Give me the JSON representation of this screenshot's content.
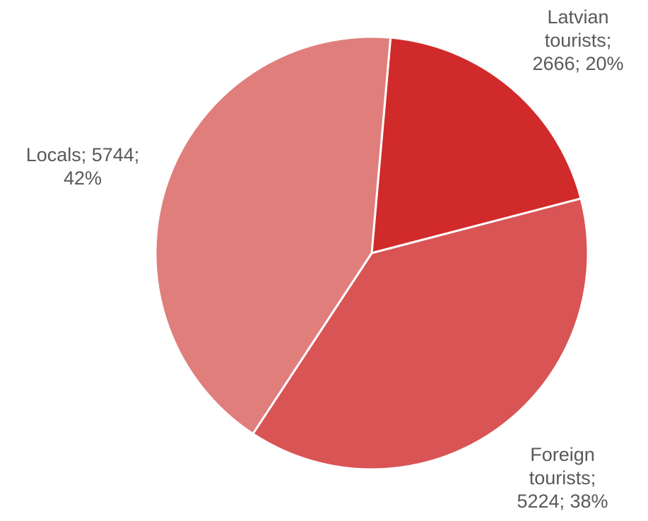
{
  "chart_data": {
    "type": "pie",
    "title": "",
    "start_angle_deg": 5,
    "direction": "clockwise",
    "slices": [
      {
        "category": "Latvian tourists",
        "value": 2666,
        "percent": "20%",
        "color": "#d12a2a",
        "label_lines": [
          "Latvian",
          "tourists;",
          "2666; 20%"
        ]
      },
      {
        "category": "Foreign tourists",
        "value": 5224,
        "percent": "38%",
        "color": "#d95454",
        "label_lines": [
          "Foreign",
          "tourists;",
          "5224; 38%"
        ]
      },
      {
        "category": "Locals",
        "value": 5744,
        "percent": "42%",
        "color": "#e07e7c",
        "label_lines": [
          "Locals; 5744;",
          "42%"
        ]
      }
    ]
  }
}
